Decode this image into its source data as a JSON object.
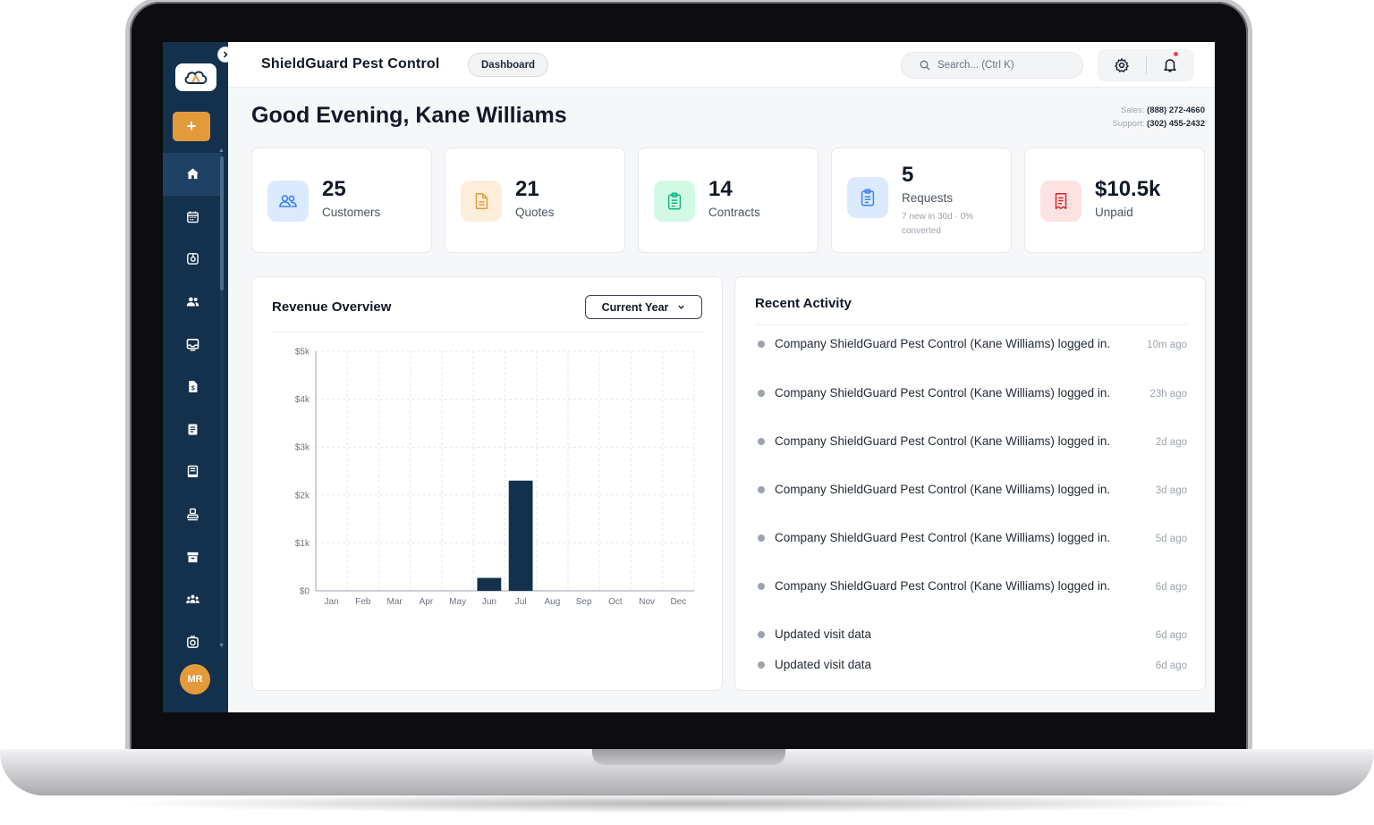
{
  "app": {
    "brand": "ShieldGuard Pest Control",
    "breadcrumb": "Dashboard"
  },
  "search": {
    "placeholder": "Search... (Ctrl K)"
  },
  "user": {
    "initials": "MR"
  },
  "greeting": "Good Evening, Kane Williams",
  "contact": {
    "sales_label": "Sales:",
    "sales_phone": "(888) 272-4660",
    "support_label": "Support:",
    "support_phone": "(302) 455-2432"
  },
  "stats": [
    {
      "value": "25",
      "label": "Customers",
      "icon": "users-icon",
      "bg": "#dbeafe",
      "fg": "#3b82f6"
    },
    {
      "value": "21",
      "label": "Quotes",
      "icon": "document-icon",
      "bg": "#fdeedb",
      "fg": "#e39a3b"
    },
    {
      "value": "14",
      "label": "Contracts",
      "icon": "clipboard-icon",
      "bg": "#d1fae5",
      "fg": "#10b981"
    },
    {
      "value": "5",
      "label": "Requests",
      "sub": "7 new in 30d · 0% converted",
      "icon": "clipboard-list-icon",
      "bg": "#dbeafe",
      "fg": "#3b82f6"
    },
    {
      "value": "$10.5k",
      "label": "Unpaid",
      "icon": "receipt-icon",
      "bg": "#fde2e2",
      "fg": "#dc2626"
    }
  ],
  "revenue": {
    "title": "Revenue Overview",
    "range_label": "Current Year"
  },
  "chart_data": {
    "type": "bar",
    "title": "Revenue Overview",
    "categories": [
      "Jan",
      "Feb",
      "Mar",
      "Apr",
      "May",
      "Jun",
      "Jul",
      "Aug",
      "Sep",
      "Oct",
      "Nov",
      "Dec"
    ],
    "values": [
      0,
      0,
      0,
      0,
      0,
      270,
      2300,
      0,
      0,
      0,
      0,
      0
    ],
    "y_ticks": [
      "$0",
      "$1k",
      "$2k",
      "$3k",
      "$4k",
      "$5k"
    ],
    "ylim": [
      0,
      5000
    ],
    "grid": true,
    "bar_color": "#13304d"
  },
  "activity": {
    "title": "Recent Activity",
    "items": [
      {
        "text": "Company ShieldGuard Pest Control (Kane Williams) logged in.",
        "time": "10m ago"
      },
      {
        "text": "Company ShieldGuard Pest Control (Kane Williams) logged in.",
        "time": "23h ago"
      },
      {
        "text": "Company ShieldGuard Pest Control (Kane Williams) logged in.",
        "time": "2d ago"
      },
      {
        "text": "Company ShieldGuard Pest Control (Kane Williams) logged in.",
        "time": "3d ago"
      },
      {
        "text": "Company ShieldGuard Pest Control (Kane Williams) logged in.",
        "time": "5d ago"
      },
      {
        "text": "Company ShieldGuard Pest Control (Kane Williams) logged in.",
        "time": "6d ago"
      },
      {
        "text": "Updated visit data",
        "time": "6d ago"
      },
      {
        "text": "Updated visit data",
        "time": "6d ago"
      }
    ]
  },
  "sidebar": {
    "items": [
      {
        "icon": "home-icon",
        "active": true
      },
      {
        "icon": "calendar-icon"
      },
      {
        "icon": "route-icon"
      },
      {
        "icon": "users-icon"
      },
      {
        "icon": "inbox-icon"
      },
      {
        "icon": "invoice-icon"
      },
      {
        "icon": "document-icon"
      },
      {
        "icon": "receipt-icon"
      },
      {
        "icon": "stamp-icon"
      },
      {
        "icon": "archive-icon"
      },
      {
        "icon": "team-icon"
      },
      {
        "icon": "camera-icon"
      }
    ]
  }
}
